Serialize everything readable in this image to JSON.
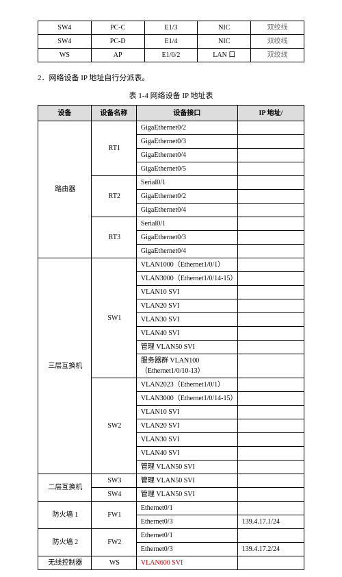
{
  "table1": {
    "rows": [
      [
        "SW4",
        "PC-C",
        "E1/3",
        "NIC",
        "双绞线"
      ],
      [
        "SW4",
        "PC-D",
        "E1/4",
        "NIC",
        "双绞线"
      ],
      [
        "WS",
        "AP",
        "E1/0/2",
        "LAN 口",
        "双绞线"
      ]
    ]
  },
  "caption": "2．网络设备 IP 地址自行分派表。",
  "table2_title": "表 1-4 网络设备 IP 地址表",
  "table2": {
    "headers": [
      "设备",
      "设备名称",
      "设备接口",
      "IP 地址/"
    ],
    "groups": [
      {
        "device": "路由器",
        "subs": [
          {
            "name": "RT1",
            "ports": [
              {
                "p": "GigaEthernet0/2",
                "ip": ""
              },
              {
                "p": "GigaEthernet0/3",
                "ip": ""
              },
              {
                "p": "GigaEthernet0/4",
                "ip": ""
              },
              {
                "p": "GigaEthernet0/5",
                "ip": ""
              }
            ]
          },
          {
            "name": "RT2",
            "ports": [
              {
                "p": "Serial0/1",
                "ip": ""
              },
              {
                "p": "GigaEthernet0/2",
                "ip": ""
              },
              {
                "p": "GigaEthernet0/4",
                "ip": ""
              }
            ]
          },
          {
            "name": "RT3",
            "ports": [
              {
                "p": "Serial0/1",
                "ip": ""
              },
              {
                "p": "GigaEthernet0/3",
                "ip": ""
              },
              {
                "p": "GigaEthernet0/4",
                "ip": ""
              }
            ]
          }
        ]
      },
      {
        "device": "三层互换机",
        "subs": [
          {
            "name": "SW1",
            "ports": [
              {
                "p": "VLAN1000（Ethernet1/0/1）",
                "ip": ""
              },
              {
                "p": "VLAN3000（Ethernet1/0/14-15）",
                "ip": ""
              },
              {
                "p": "VLAN10 SVI",
                "ip": ""
              },
              {
                "p": "VLAN20 SVI",
                "ip": ""
              },
              {
                "p": "VLAN30 SVI",
                "ip": ""
              },
              {
                "p": "VLAN40 SVI",
                "ip": ""
              },
              {
                "p": "管理 VLAN50 SVI",
                "ip": ""
              },
              {
                "p": "服务器群 VLAN100（Ethernet1/0/10-13）",
                "ip": ""
              }
            ]
          },
          {
            "name": "SW2",
            "ports": [
              {
                "p": "VLAN2023（Ethernet1/0/1）",
                "ip": ""
              },
              {
                "p": "VLAN3000（Ethernet1/0/14-15）",
                "ip": ""
              },
              {
                "p": "VLAN10 SVI",
                "ip": ""
              },
              {
                "p": "VLAN20 SVI",
                "ip": ""
              },
              {
                "p": "VLAN30 SVI",
                "ip": ""
              },
              {
                "p": "VLAN40 SVI",
                "ip": ""
              },
              {
                "p": "管理 VLAN50 SVI",
                "ip": ""
              }
            ]
          }
        ]
      },
      {
        "device": "二层互换机",
        "subs": [
          {
            "name": "SW3",
            "ports": [
              {
                "p": "管理 VLAN50 SVI",
                "ip": ""
              }
            ]
          },
          {
            "name": "SW4",
            "ports": [
              {
                "p": "管理 VLAN50 SVI",
                "ip": ""
              }
            ]
          }
        ]
      },
      {
        "device": "防火墙 1",
        "subs": [
          {
            "name": "FW1",
            "ports": [
              {
                "p": "Ethernet0/1",
                "ip": ""
              },
              {
                "p": "Ethernet0/3",
                "ip": "139.4.17.1/24"
              }
            ]
          }
        ]
      },
      {
        "device": "防火墙 2",
        "subs": [
          {
            "name": "FW2",
            "ports": [
              {
                "p": "Ethernet0/1",
                "ip": ""
              },
              {
                "p": "Ethernet0/3",
                "ip": "139.4.17.2/24"
              }
            ]
          }
        ]
      },
      {
        "device": "无线控制器",
        "subs": [
          {
            "name": "WS",
            "ports": [
              {
                "p": "VLAN600 SVI",
                "ip": "",
                "red": true
              }
            ]
          }
        ]
      }
    ]
  }
}
